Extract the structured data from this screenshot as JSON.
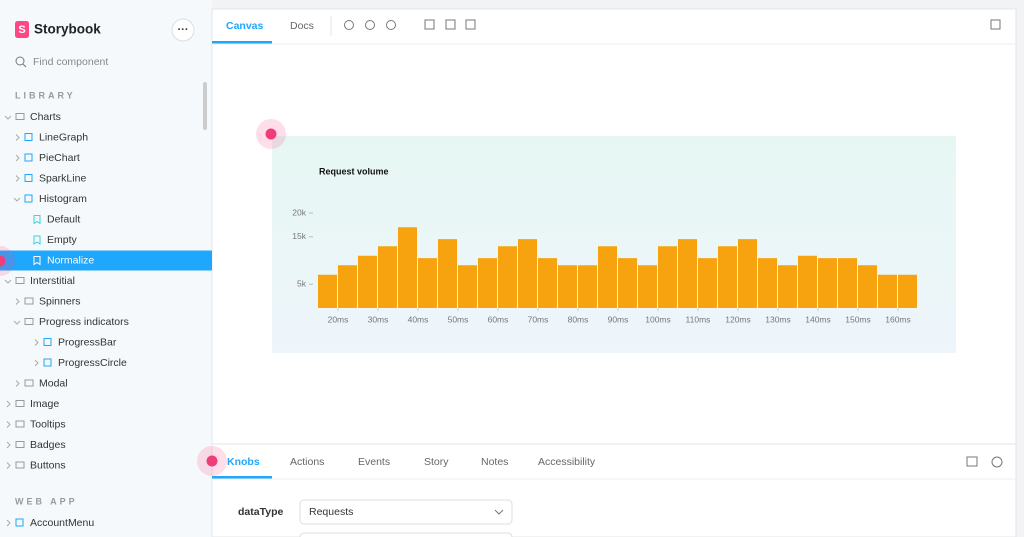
{
  "sidebar": {
    "brand": "Storybook",
    "search_placeholder": "Find component",
    "sections": [
      {
        "heading": "LIBRARY",
        "items": [
          {
            "label": "Charts",
            "depth": 0,
            "kind": "folder",
            "open": true
          },
          {
            "label": "LineGraph",
            "depth": 1,
            "kind": "component"
          },
          {
            "label": "PieChart",
            "depth": 1,
            "kind": "component"
          },
          {
            "label": "SparkLine",
            "depth": 1,
            "kind": "component"
          },
          {
            "label": "Histogram",
            "depth": 1,
            "kind": "component",
            "open": true
          },
          {
            "label": "Default",
            "depth": 2,
            "kind": "story"
          },
          {
            "label": "Empty",
            "depth": 2,
            "kind": "story"
          },
          {
            "label": "Normalize",
            "depth": 2,
            "kind": "story",
            "selected": true
          },
          {
            "label": "Interstitial",
            "depth": 0,
            "kind": "folder",
            "open": true
          },
          {
            "label": "Spinners",
            "depth": 1,
            "kind": "folder"
          },
          {
            "label": "Progress indicators",
            "depth": 1,
            "kind": "folder",
            "open": true
          },
          {
            "label": "ProgressBar",
            "depth": 2,
            "kind": "component"
          },
          {
            "label": "ProgressCircle",
            "depth": 2,
            "kind": "component"
          },
          {
            "label": "Modal",
            "depth": 1,
            "kind": "folder"
          },
          {
            "label": "Image",
            "depth": 0,
            "kind": "folder"
          },
          {
            "label": "Tooltips",
            "depth": 0,
            "kind": "folder"
          },
          {
            "label": "Badges",
            "depth": 0,
            "kind": "folder"
          },
          {
            "label": "Buttons",
            "depth": 0,
            "kind": "folder"
          }
        ]
      },
      {
        "heading": "WEB APP",
        "items": [
          {
            "label": "AccountMenu",
            "depth": 0,
            "kind": "component"
          }
        ]
      }
    ]
  },
  "toolbar": {
    "tabs": [
      "Canvas",
      "Docs"
    ]
  },
  "preview": {
    "chart_data": {
      "type": "histogram",
      "title": "Request volume",
      "color": "#f6a30f",
      "bins": [
        15,
        20,
        25,
        30,
        35,
        40,
        45,
        50,
        55,
        60,
        65,
        70,
        75,
        80,
        85,
        90,
        95,
        100,
        105,
        110,
        115,
        120,
        125,
        130,
        135,
        140,
        145,
        150,
        155,
        160,
        165
      ],
      "values": [
        7000,
        9000,
        11000,
        13000,
        17000,
        10500,
        14500,
        9000,
        10500,
        13000,
        14500,
        10500,
        9000,
        9000,
        13000,
        10500,
        9000,
        13000,
        14500,
        10500,
        13000,
        14500,
        10500,
        9000,
        11000,
        10500,
        10500,
        9000,
        7000,
        7000
      ],
      "xlim": [
        15,
        165
      ],
      "xticks": [
        {
          "value": 20,
          "label": "20ms"
        },
        {
          "value": 30,
          "label": "30ms"
        },
        {
          "value": 40,
          "label": "40ms"
        },
        {
          "value": 50,
          "label": "50ms"
        },
        {
          "value": 60,
          "label": "60ms"
        },
        {
          "value": 70,
          "label": "70ms"
        },
        {
          "value": 80,
          "label": "80ms"
        },
        {
          "value": 90,
          "label": "90ms"
        },
        {
          "value": 100,
          "label": "100ms"
        },
        {
          "value": 110,
          "label": "110ms"
        },
        {
          "value": 120,
          "label": "120ms"
        },
        {
          "value": 130,
          "label": "130ms"
        },
        {
          "value": 140,
          "label": "140ms"
        },
        {
          "value": 150,
          "label": "150ms"
        },
        {
          "value": 160,
          "label": "160ms"
        }
      ],
      "ylim": [
        0,
        22000
      ],
      "yticks": [
        {
          "value": 5000,
          "label": "5k"
        },
        {
          "value": 15000,
          "label": "15k"
        },
        {
          "value": 20000,
          "label": "20k"
        }
      ]
    }
  },
  "addons": {
    "tabs": [
      "Knobs",
      "Actions",
      "Events",
      "Story",
      "Notes",
      "Accessibility"
    ],
    "knobs": [
      {
        "name": "dataType",
        "value": "Requests"
      }
    ]
  }
}
